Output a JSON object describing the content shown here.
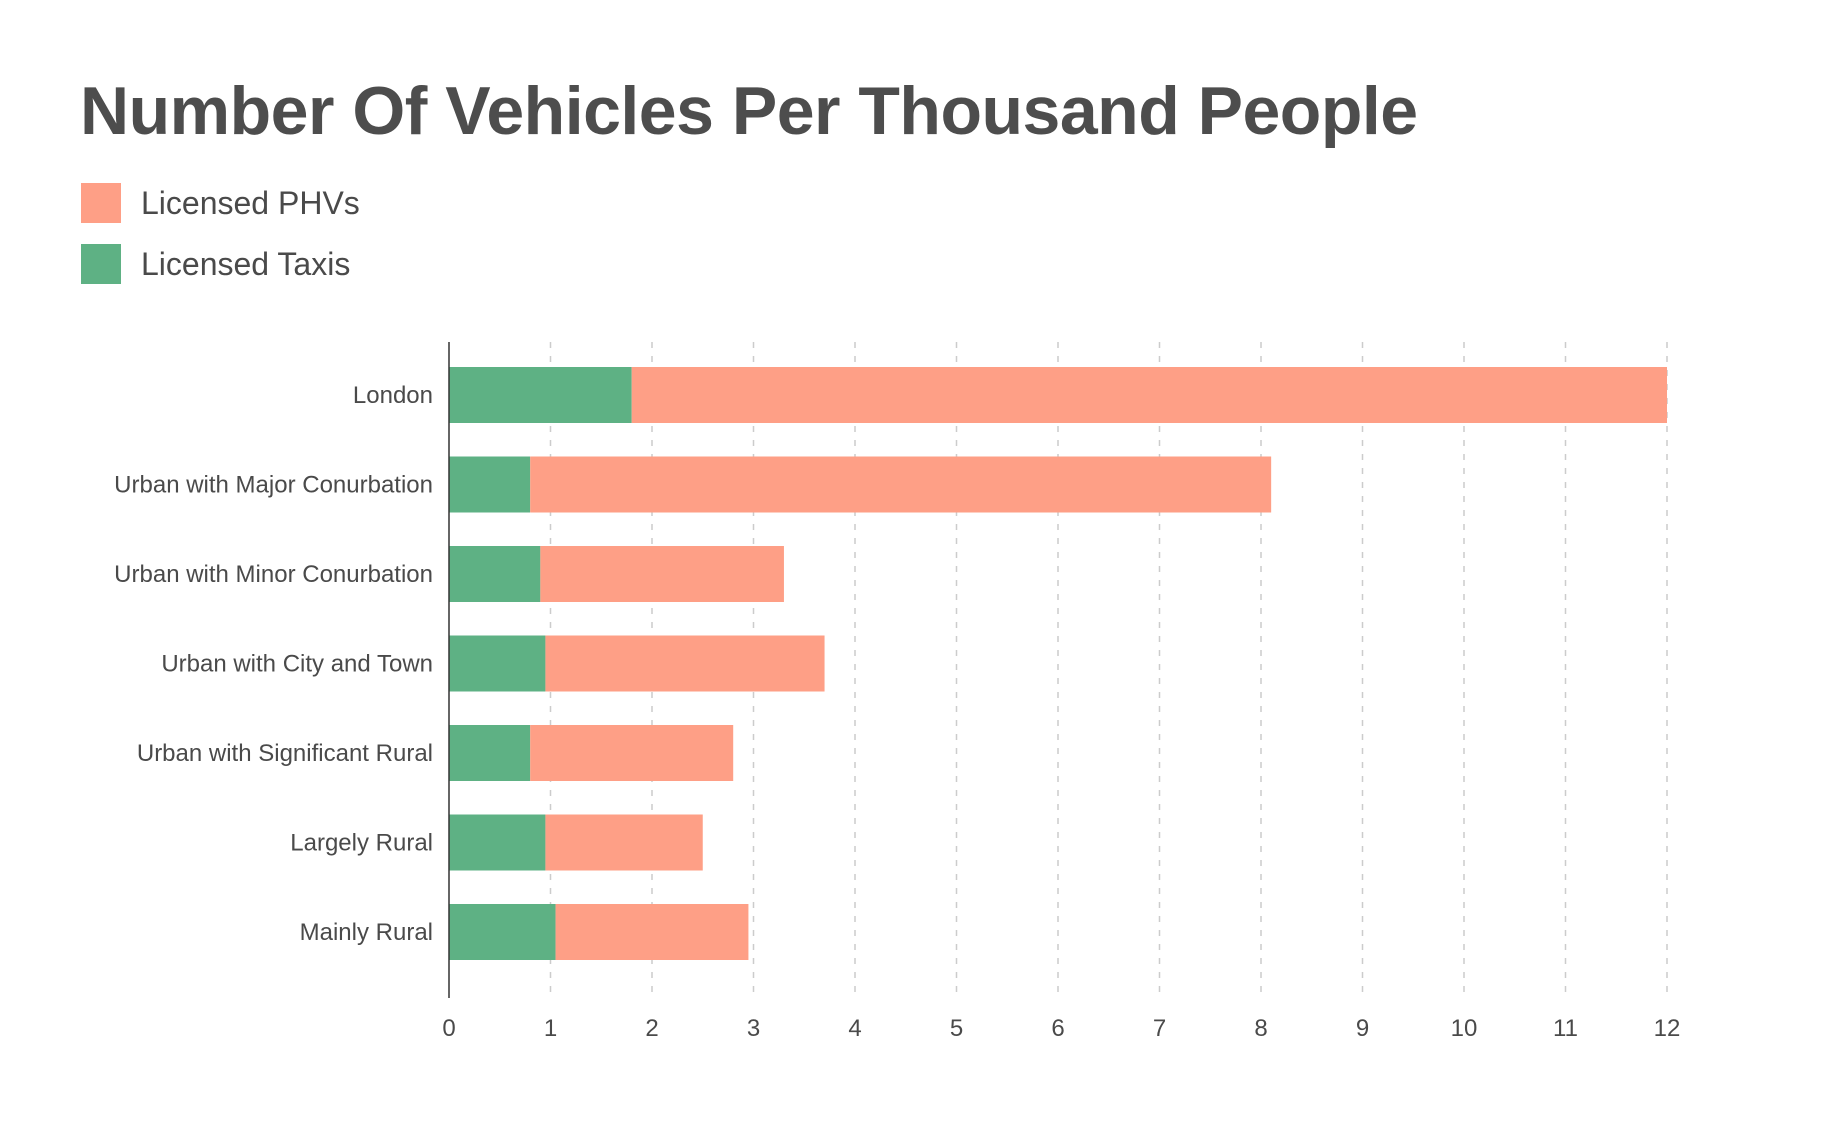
{
  "chart_data": {
    "type": "bar",
    "orientation": "horizontal",
    "stacked": true,
    "title": "Number Of Vehicles Per Thousand People",
    "xlabel": "",
    "ylabel": "",
    "xlim": [
      0,
      12
    ],
    "xticks": [
      "0",
      "1",
      "2",
      "3",
      "4",
      "5",
      "6",
      "7",
      "8",
      "9",
      "10",
      "11",
      "12"
    ],
    "grid": "vertical-dashed",
    "legend_position": "top-left",
    "categories": [
      "London",
      "Urban with Major Conurbation",
      "Urban with Minor Conurbation",
      "Urban with City and Town",
      "Urban with Significant Rural",
      "Largely Rural",
      "Mainly Rural"
    ],
    "series": [
      {
        "name": "Licensed Taxis",
        "color": "#5eb184",
        "values": [
          1.8,
          0.8,
          0.9,
          0.95,
          0.8,
          0.95,
          1.05
        ]
      },
      {
        "name": "Licensed PHVs",
        "color": "#fe9f86",
        "values": [
          10.2,
          7.3,
          2.4,
          2.75,
          2.0,
          1.55,
          1.9
        ]
      }
    ],
    "totals": [
      12.0,
      8.1,
      3.3,
      3.7,
      2.8,
      2.5,
      2.95
    ]
  },
  "legend": [
    {
      "label": "Licensed PHVs",
      "color": "#fe9f86"
    },
    {
      "label": "Licensed Taxis",
      "color": "#5eb184"
    }
  ]
}
